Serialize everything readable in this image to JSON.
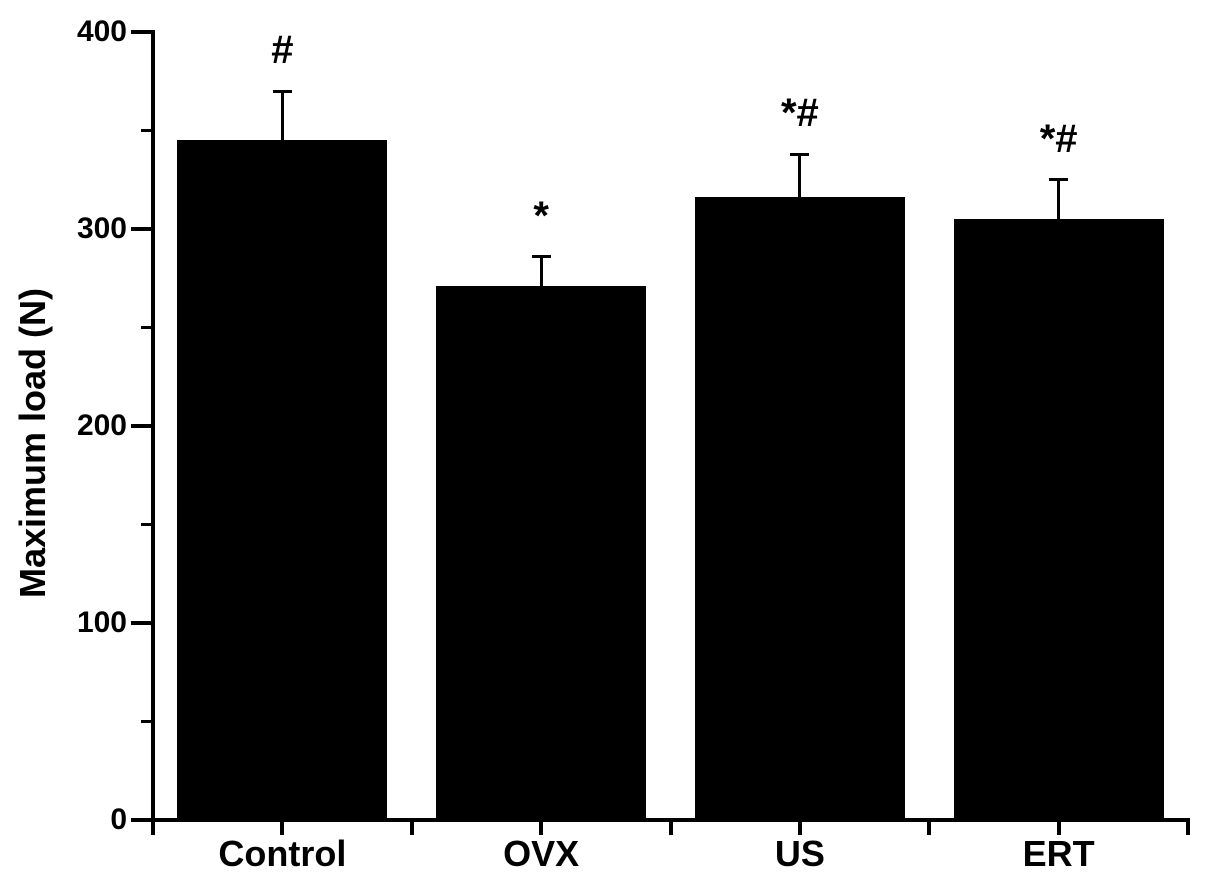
{
  "figure": {
    "background": "#ffffff",
    "foreground": "#000000",
    "bar_color": "#000000"
  },
  "chart_data": {
    "type": "bar",
    "title": "",
    "xlabel": "",
    "ylabel": "Maximum load (N)",
    "categories": [
      "Control",
      "OVX",
      "US",
      "ERT"
    ],
    "values": [
      345,
      271,
      316,
      305
    ],
    "errors_plus": [
      25,
      15,
      22,
      20
    ],
    "annotations": [
      "#",
      "*",
      "*#",
      "*#"
    ],
    "ylim": [
      0,
      400
    ],
    "y_major_ticks": [
      0,
      100,
      200,
      300,
      400
    ],
    "y_minor_ticks": [
      50,
      150,
      250,
      350
    ],
    "grid": false,
    "legend": null
  }
}
